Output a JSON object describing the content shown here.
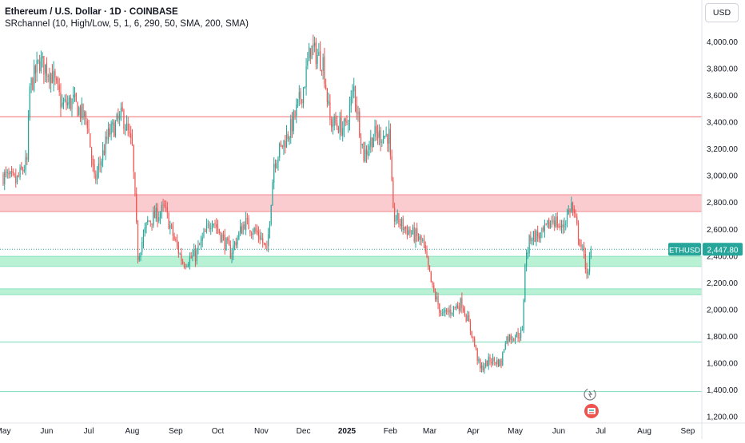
{
  "header": {
    "title": "Ethereum / U.S. Dollar · 1D · COINBASE",
    "indicator": "SRchannel (10, High/Low, 5, 1, 6, 290, 50, SMA, 200, SMA)"
  },
  "currency_label": "USD",
  "price_tag": {
    "symbol": "ETHUSD",
    "price_text": "2,447.80",
    "price": 2447.8
  },
  "colors": {
    "up": "#26a69a",
    "down": "#ef5350",
    "resistance_band": "#fbc9cc",
    "resistance_line": "#f48a8f",
    "support_band": "#b5f0d3",
    "support_line": "#8fe0c0",
    "tag_bg": "#26a69a"
  },
  "icons": {
    "replay": "replay-icon",
    "alert": "alert-flag-icon"
  },
  "chart_data": {
    "type": "candlestick",
    "title": "Ethereum / U.S. Dollar · 1D · COINBASE",
    "x_tick_labels": [
      "May",
      "Jun",
      "Jul",
      "Aug",
      "Sep",
      "Oct",
      "Nov",
      "Dec",
      "2025",
      "Feb",
      "Mar",
      "Apr",
      "May",
      "Jun",
      "Jul",
      "Aug",
      "Sep"
    ],
    "y_tick_labels": [
      "1,200.00",
      "1,400.00",
      "1,600.00",
      "1,800.00",
      "2,000.00",
      "2,200.00",
      "2,400.00",
      "2,600.00",
      "2,800.00",
      "3,000.00",
      "3,200.00",
      "3,400.00",
      "3,600.00",
      "3,800.00",
      "4,000.00",
      "4,200.00"
    ],
    "ylim": [
      1150,
      4250
    ],
    "x_axis_start": "2024-05-01",
    "last_data_date": "2025-06-24",
    "grid": false,
    "sr_levels": [
      {
        "kind": "resistance",
        "style": "line",
        "price": 3437
      },
      {
        "kind": "resistance",
        "style": "band",
        "low": 2730,
        "high": 2855
      },
      {
        "kind": "support",
        "style": "band",
        "low": 2320,
        "high": 2395
      },
      {
        "kind": "support",
        "style": "band",
        "low": 2108,
        "high": 2152
      },
      {
        "kind": "support",
        "style": "line",
        "price": 1755
      },
      {
        "kind": "support",
        "style": "line",
        "price": 1385
      }
    ],
    "price_path": [
      [
        "2024-05-01",
        3000
      ],
      [
        "2024-05-10",
        2950
      ],
      [
        "2024-05-18",
        3100
      ],
      [
        "2024-05-20",
        3650
      ],
      [
        "2024-05-27",
        3850
      ],
      [
        "2024-06-05",
        3750
      ],
      [
        "2024-06-12",
        3520
      ],
      [
        "2024-06-20",
        3550
      ],
      [
        "2024-06-30",
        3400
      ],
      [
        "2024-07-05",
        2950
      ],
      [
        "2024-07-15",
        3300
      ],
      [
        "2024-07-25",
        3450
      ],
      [
        "2024-08-01",
        3200
      ],
      [
        "2024-08-05",
        2400
      ],
      [
        "2024-08-12",
        2650
      ],
      [
        "2024-08-24",
        2750
      ],
      [
        "2024-08-31",
        2520
      ],
      [
        "2024-09-06",
        2350
      ],
      [
        "2024-09-15",
        2400
      ],
      [
        "2024-09-27",
        2680
      ],
      [
        "2024-10-10",
        2420
      ],
      [
        "2024-10-20",
        2650
      ],
      [
        "2024-10-31",
        2550
      ],
      [
        "2024-11-05",
        2420
      ],
      [
        "2024-11-10",
        3100
      ],
      [
        "2024-11-22",
        3350
      ],
      [
        "2024-12-01",
        3650
      ],
      [
        "2024-12-06",
        3950
      ],
      [
        "2024-12-15",
        3850
      ],
      [
        "2024-12-20",
        3400
      ],
      [
        "2024-12-31",
        3350
      ],
      [
        "2025-01-06",
        3650
      ],
      [
        "2025-01-13",
        3150
      ],
      [
        "2025-01-20",
        3300
      ],
      [
        "2025-01-31",
        3300
      ],
      [
        "2025-02-03",
        2700
      ],
      [
        "2025-02-10",
        2620
      ],
      [
        "2025-02-24",
        2500
      ],
      [
        "2025-03-03",
        2150
      ],
      [
        "2025-03-10",
        1950
      ],
      [
        "2025-03-24",
        2050
      ],
      [
        "2025-03-31",
        1820
      ],
      [
        "2025-04-06",
        1550
      ],
      [
        "2025-04-13",
        1620
      ],
      [
        "2025-04-21",
        1600
      ],
      [
        "2025-04-24",
        1780
      ],
      [
        "2025-05-06",
        1820
      ],
      [
        "2025-05-08",
        2350
      ],
      [
        "2025-05-12",
        2550
      ],
      [
        "2025-05-20",
        2550
      ],
      [
        "2025-05-28",
        2680
      ],
      [
        "2025-06-03",
        2600
      ],
      [
        "2025-06-10",
        2780
      ],
      [
        "2025-06-15",
        2560
      ],
      [
        "2025-06-22",
        2250
      ],
      [
        "2025-06-24",
        2447.8
      ]
    ]
  }
}
